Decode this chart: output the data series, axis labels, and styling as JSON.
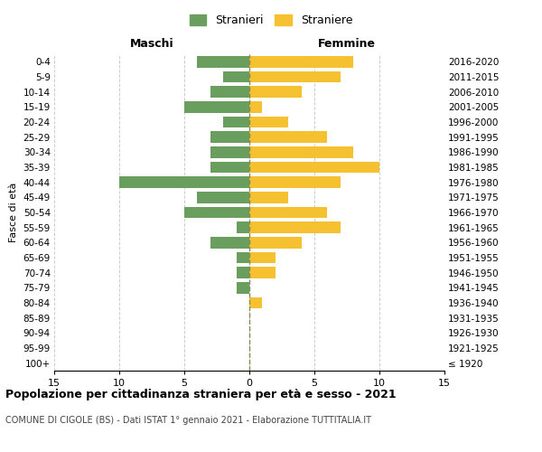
{
  "age_groups": [
    "100+",
    "95-99",
    "90-94",
    "85-89",
    "80-84",
    "75-79",
    "70-74",
    "65-69",
    "60-64",
    "55-59",
    "50-54",
    "45-49",
    "40-44",
    "35-39",
    "30-34",
    "25-29",
    "20-24",
    "15-19",
    "10-14",
    "5-9",
    "0-4"
  ],
  "birth_years": [
    "≤ 1920",
    "1921-1925",
    "1926-1930",
    "1931-1935",
    "1936-1940",
    "1941-1945",
    "1946-1950",
    "1951-1955",
    "1956-1960",
    "1961-1965",
    "1966-1970",
    "1971-1975",
    "1976-1980",
    "1981-1985",
    "1986-1990",
    "1991-1995",
    "1996-2000",
    "2001-2005",
    "2006-2010",
    "2011-2015",
    "2016-2020"
  ],
  "males": [
    0,
    0,
    0,
    0,
    0,
    1,
    1,
    1,
    3,
    1,
    5,
    4,
    10,
    3,
    3,
    3,
    2,
    5,
    3,
    2,
    4
  ],
  "females": [
    0,
    0,
    0,
    0,
    1,
    0,
    2,
    2,
    4,
    7,
    6,
    3,
    7,
    10,
    8,
    6,
    3,
    1,
    4,
    7,
    8
  ],
  "male_color": "#6a9e5f",
  "female_color": "#f5c131",
  "background_color": "#ffffff",
  "grid_color": "#cccccc",
  "dashed_line_color": "#888855",
  "xlim": 15,
  "title": "Popolazione per cittadinanza straniera per età e sesso - 2021",
  "subtitle": "COMUNE DI CIGOLE (BS) - Dati ISTAT 1° gennaio 2021 - Elaborazione TUTTITALIA.IT",
  "xlabel_left": "Maschi",
  "xlabel_right": "Femmine",
  "ylabel_left": "Fasce di età",
  "legend_male": "Stranieri",
  "legend_female": "Straniere"
}
